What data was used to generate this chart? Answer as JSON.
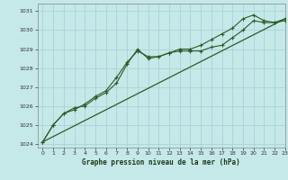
{
  "title": "Graphe pression niveau de la mer (hPa)",
  "bg_color": "#c5e8e8",
  "grid_color": "#a8d4d4",
  "line_color": "#2d5a27",
  "xlim": [
    -0.5,
    23
  ],
  "ylim": [
    1023.8,
    1031.4
  ],
  "yticks": [
    1024,
    1025,
    1026,
    1027,
    1028,
    1029,
    1030,
    1031
  ],
  "xticks": [
    0,
    1,
    2,
    3,
    4,
    5,
    6,
    7,
    8,
    9,
    10,
    11,
    12,
    13,
    14,
    15,
    16,
    17,
    18,
    19,
    20,
    21,
    22,
    23
  ],
  "line1_x": [
    0,
    1,
    2,
    3,
    4,
    5,
    6,
    7,
    8,
    9,
    10,
    11,
    12,
    13,
    14,
    15,
    16,
    17,
    18,
    19,
    20,
    21,
    22,
    23
  ],
  "line1_y": [
    1024.1,
    1025.0,
    1025.6,
    1025.8,
    1026.1,
    1026.5,
    1026.8,
    1027.5,
    1028.3,
    1028.9,
    1028.6,
    1028.6,
    1028.8,
    1028.9,
    1028.9,
    1028.9,
    1029.1,
    1029.2,
    1029.6,
    1030.0,
    1030.5,
    1030.4,
    1030.4,
    1030.5
  ],
  "line2_x": [
    0,
    1,
    2,
    3,
    4,
    5,
    6,
    7,
    8,
    9,
    10,
    11,
    12,
    13,
    14,
    15,
    16,
    17,
    18,
    19,
    20,
    21,
    22,
    23
  ],
  "line2_y": [
    1024.1,
    1025.0,
    1025.6,
    1025.9,
    1026.0,
    1026.4,
    1026.7,
    1027.2,
    1028.2,
    1029.0,
    1028.5,
    1028.6,
    1028.8,
    1029.0,
    1029.0,
    1029.2,
    1029.5,
    1029.8,
    1030.1,
    1030.6,
    1030.8,
    1030.5,
    1030.4,
    1030.6
  ],
  "trend_x": [
    0,
    23
  ],
  "trend_y": [
    1024.1,
    1030.6
  ]
}
